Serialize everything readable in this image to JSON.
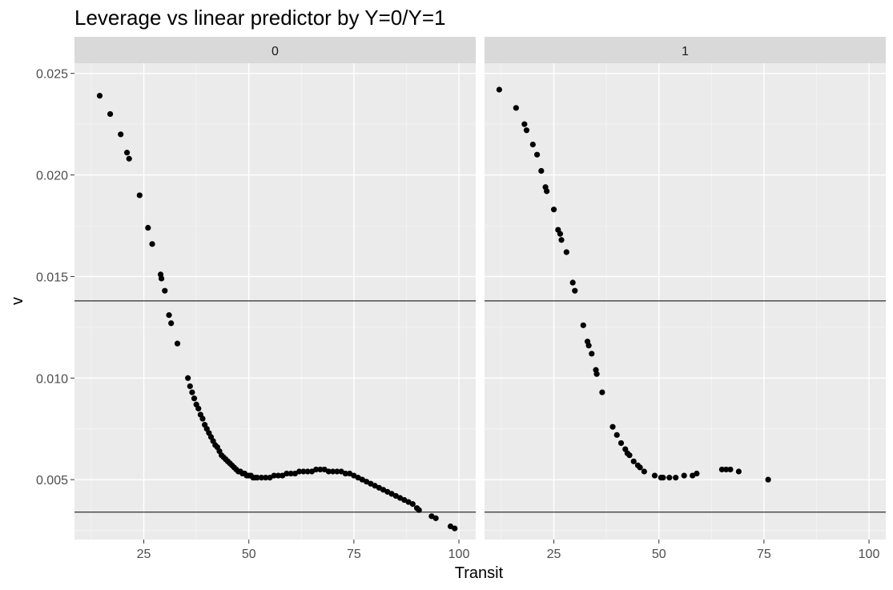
{
  "chart_data": {
    "type": "scatter",
    "title": "Leverage vs linear predictor by Y=0/Y=1",
    "xlabel": "Transit",
    "ylabel": "v",
    "xlim": [
      8.5,
      104
    ],
    "ylim": [
      0.00205,
      0.0255
    ],
    "x_ticks": [
      25,
      50,
      75,
      100
    ],
    "x_tick_labels": [
      "25",
      "50",
      "75",
      "100"
    ],
    "y_ticks": [
      0.005,
      0.01,
      0.015,
      0.02,
      0.025
    ],
    "y_tick_labels": [
      "0.005",
      "0.010",
      "0.015",
      "0.020",
      "0.025"
    ],
    "reference_lines_y": [
      0.0138,
      0.0034
    ],
    "grid": true,
    "facets": [
      {
        "label": "0",
        "points": [
          [
            14.5,
            0.0239
          ],
          [
            17,
            0.023
          ],
          [
            19.5,
            0.022
          ],
          [
            21,
            0.0211
          ],
          [
            21.5,
            0.0208
          ],
          [
            24,
            0.019
          ],
          [
            26,
            0.0174
          ],
          [
            27,
            0.0166
          ],
          [
            29,
            0.0151
          ],
          [
            29.2,
            0.0149
          ],
          [
            30,
            0.0143
          ],
          [
            31,
            0.0131
          ],
          [
            31.5,
            0.0127
          ],
          [
            33,
            0.0117
          ],
          [
            35.5,
            0.01
          ],
          [
            36,
            0.0096
          ],
          [
            36.5,
            0.0093
          ],
          [
            37,
            0.009
          ],
          [
            37.5,
            0.0087
          ],
          [
            38,
            0.0085
          ],
          [
            38.5,
            0.0082
          ],
          [
            39,
            0.008
          ],
          [
            39.5,
            0.0077
          ],
          [
            40,
            0.0075
          ],
          [
            40.5,
            0.0073
          ],
          [
            41,
            0.0071
          ],
          [
            41.5,
            0.0069
          ],
          [
            42,
            0.0067
          ],
          [
            42.5,
            0.0066
          ],
          [
            43,
            0.0064
          ],
          [
            43.5,
            0.0062
          ],
          [
            44,
            0.0061
          ],
          [
            44.5,
            0.006
          ],
          [
            45,
            0.0059
          ],
          [
            45.5,
            0.0058
          ],
          [
            46,
            0.0057
          ],
          [
            46.5,
            0.0056
          ],
          [
            47,
            0.0055
          ],
          [
            47.5,
            0.0054
          ],
          [
            48,
            0.0054
          ],
          [
            48.5,
            0.0053
          ],
          [
            49,
            0.0053
          ],
          [
            49.5,
            0.0052
          ],
          [
            50,
            0.0052
          ],
          [
            50.5,
            0.0052
          ],
          [
            51,
            0.0051
          ],
          [
            51.5,
            0.0051
          ],
          [
            52,
            0.0051
          ],
          [
            53,
            0.0051
          ],
          [
            54,
            0.0051
          ],
          [
            55,
            0.0051
          ],
          [
            56,
            0.0052
          ],
          [
            57,
            0.0052
          ],
          [
            58,
            0.0052
          ],
          [
            59,
            0.0053
          ],
          [
            60,
            0.0053
          ],
          [
            61,
            0.0053
          ],
          [
            62,
            0.0054
          ],
          [
            63,
            0.0054
          ],
          [
            64,
            0.0054
          ],
          [
            65,
            0.0054
          ],
          [
            66,
            0.0055
          ],
          [
            67,
            0.0055
          ],
          [
            68,
            0.0055
          ],
          [
            69,
            0.0054
          ],
          [
            70,
            0.0054
          ],
          [
            71,
            0.0054
          ],
          [
            72,
            0.0054
          ],
          [
            73,
            0.0053
          ],
          [
            74,
            0.0053
          ],
          [
            75,
            0.0052
          ],
          [
            76,
            0.0051
          ],
          [
            77,
            0.005
          ],
          [
            78,
            0.0049
          ],
          [
            79,
            0.0048
          ],
          [
            80,
            0.0047
          ],
          [
            81,
            0.0046
          ],
          [
            82,
            0.0045
          ],
          [
            83,
            0.0044
          ],
          [
            84,
            0.0043
          ],
          [
            85,
            0.0042
          ],
          [
            86,
            0.0041
          ],
          [
            87,
            0.004
          ],
          [
            88,
            0.0039
          ],
          [
            89,
            0.0038
          ],
          [
            90,
            0.0036
          ],
          [
            90.5,
            0.0035
          ],
          [
            93.5,
            0.0032
          ],
          [
            94.5,
            0.0031
          ],
          [
            98,
            0.0027
          ],
          [
            99,
            0.0026
          ]
        ]
      },
      {
        "label": "1",
        "points": [
          [
            12,
            0.0242
          ],
          [
            16,
            0.0233
          ],
          [
            18,
            0.0225
          ],
          [
            18.5,
            0.0222
          ],
          [
            20,
            0.0215
          ],
          [
            21,
            0.021
          ],
          [
            22,
            0.0202
          ],
          [
            23,
            0.0194
          ],
          [
            23.3,
            0.0192
          ],
          [
            25,
            0.0183
          ],
          [
            26,
            0.0173
          ],
          [
            26.5,
            0.0171
          ],
          [
            26.8,
            0.0168
          ],
          [
            28,
            0.0162
          ],
          [
            29.5,
            0.0147
          ],
          [
            30,
            0.0143
          ],
          [
            32,
            0.0126
          ],
          [
            33,
            0.0118
          ],
          [
            33.3,
            0.0116
          ],
          [
            34,
            0.0112
          ],
          [
            35,
            0.0104
          ],
          [
            35.2,
            0.0102
          ],
          [
            36.5,
            0.0093
          ],
          [
            39,
            0.0076
          ],
          [
            40,
            0.0072
          ],
          [
            41,
            0.0068
          ],
          [
            42,
            0.0065
          ],
          [
            42.5,
            0.0063
          ],
          [
            43,
            0.0062
          ],
          [
            44,
            0.0059
          ],
          [
            45,
            0.0057
          ],
          [
            45.5,
            0.0056
          ],
          [
            46.5,
            0.0054
          ],
          [
            49,
            0.0052
          ],
          [
            50.5,
            0.0051
          ],
          [
            51,
            0.0051
          ],
          [
            52.5,
            0.0051
          ],
          [
            54,
            0.0051
          ],
          [
            56,
            0.0052
          ],
          [
            58,
            0.0052
          ],
          [
            59,
            0.0053
          ],
          [
            65,
            0.0055
          ],
          [
            66,
            0.0055
          ],
          [
            67,
            0.0055
          ],
          [
            69,
            0.0054
          ],
          [
            76,
            0.005
          ]
        ]
      }
    ]
  }
}
